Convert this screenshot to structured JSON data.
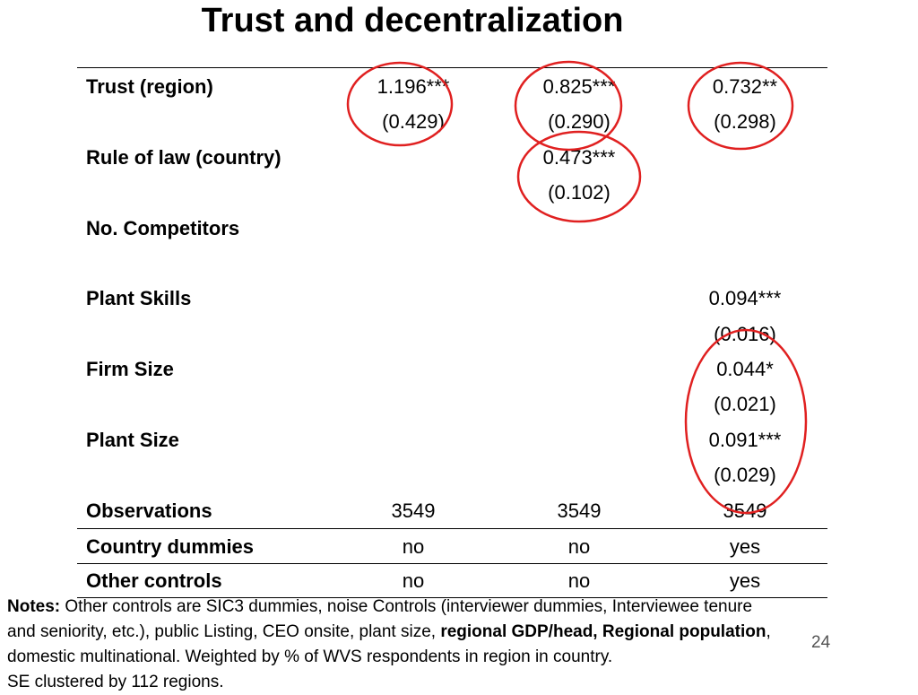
{
  "title": "Trust and decentralization",
  "table": {
    "rows": {
      "trust": {
        "label": "Trust (region)",
        "c1": "1.196***",
        "c1_se": "(0.429)",
        "c2": "0.825***",
        "c2_se": "(0.290)",
        "c3": "0.732**",
        "c3_se": "(0.298)"
      },
      "rule_of_law": {
        "label": "Rule of law (country)",
        "c2": "0.473***",
        "c2_se": "(0.102)"
      },
      "competitors": {
        "label": "No. Competitors"
      },
      "plant_skills": {
        "label": "Plant Skills",
        "c3": "0.094***",
        "c3_se": "(0.016)"
      },
      "firm_size": {
        "label": "Firm Size",
        "c3": "0.044*",
        "c3_se": "(0.021)"
      },
      "plant_size": {
        "label": "Plant Size",
        "c3": "0.091***",
        "c3_se": "(0.029)"
      },
      "observations": {
        "label": "Observations",
        "c1": "3549",
        "c2": "3549",
        "c3": "3549"
      },
      "country_dummies": {
        "label": "Country dummies",
        "c1": "no",
        "c2": "no",
        "c3": "yes"
      },
      "other_controls": {
        "label": "Other controls",
        "c1": "no",
        "c2": "no",
        "c3": "yes"
      }
    }
  },
  "notes": {
    "lead": "Notes:",
    "line1_rest": " Other controls are SIC3 dummies, noise Controls (interviewer dummies, Interviewee tenure",
    "line2_start": "and seniority, etc.), public Listing, CEO onsite, plant size, ",
    "line2_bold": "regional GDP/head, Regional population",
    "line2_end": ",",
    "line3": " domestic multinational. Weighted by % of WVS respondents in region in country.",
    "line4": "SE clustered by 112 regions."
  },
  "page_number": "24",
  "annotation_color": "#e02020"
}
